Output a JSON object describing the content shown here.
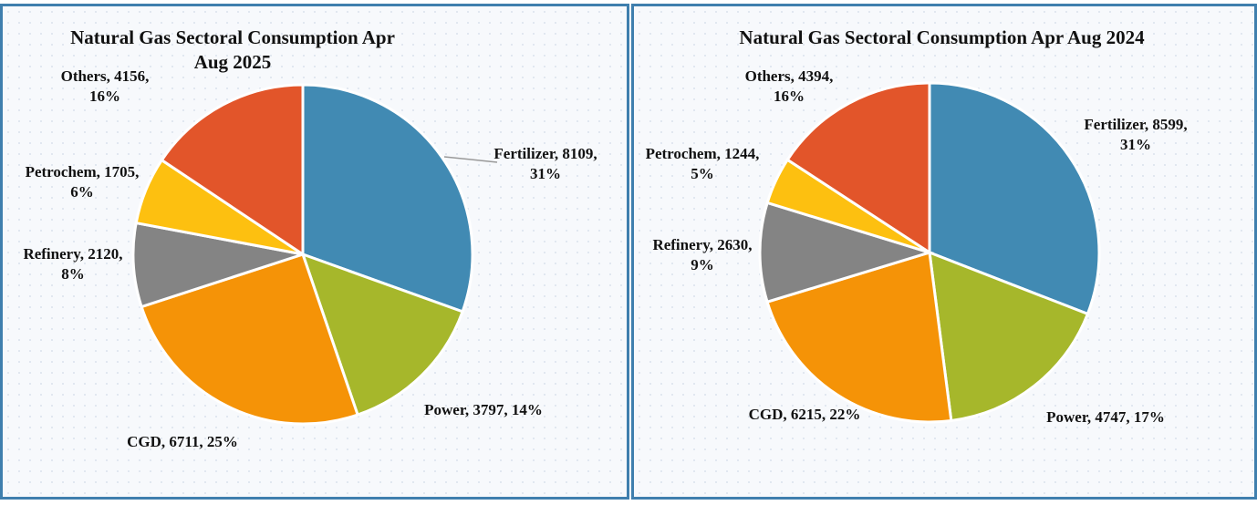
{
  "chart_data": [
    {
      "type": "pie",
      "title": "Natural Gas Sectoral Consumption Apr Aug 2025",
      "categories": [
        "Fertilizer",
        "Power",
        "CGD",
        "Refinery",
        "Petrochem",
        "Others"
      ],
      "values": [
        8109,
        3797,
        6711,
        2120,
        1705,
        4156
      ],
      "value_labels": [
        "8109, 31%",
        "3797, 14%",
        "6711, 25%",
        "2120, 8%",
        "1705, 6%",
        "4156, 16%"
      ],
      "colors": [
        "#418ab3",
        "#a6b72b",
        "#f59307",
        "#848484",
        "#fdc010",
        "#e2552a"
      ]
    },
    {
      "type": "pie",
      "title": "Natural Gas Sectoral Consumption Apr Aug 2024",
      "categories": [
        "Fertilizer",
        "Power",
        "CGD",
        "Refinery",
        "Petrochem",
        "Others"
      ],
      "values": [
        8599,
        4747,
        6215,
        2630,
        1244,
        4394
      ],
      "value_labels": [
        "8599, 31%",
        "4747, 17%",
        "6215, 22%",
        "2630, 9%",
        "1244, 5%",
        "4394, 16%"
      ],
      "colors": [
        "#418ab3",
        "#a6b72b",
        "#f59307",
        "#848484",
        "#fdc010",
        "#e2552a"
      ]
    }
  ]
}
